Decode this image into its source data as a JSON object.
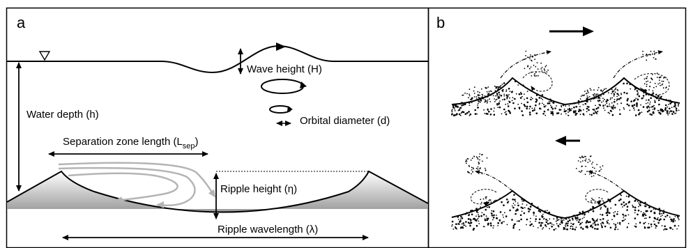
{
  "panels": {
    "a": {
      "letter": "a",
      "labels": {
        "wave_height": "Wave height (H)",
        "water_depth": "Water depth (h)",
        "orbital_diameter": "Orbital diameter (d)",
        "separation_zone_main": "Separation zone length (L",
        "separation_zone_sub": "sep",
        "separation_zone_close": ")",
        "ripple_height": "Ripple height (η)",
        "ripple_wavelength": "Ripple wavelength (λ)"
      }
    },
    "b": {
      "letter": "b",
      "flow_directions": [
        "right",
        "left"
      ]
    }
  },
  "colors": {
    "stroke": "#000000",
    "flow_lines": "#b4b4b4",
    "sediment_shade": "#9a9a9a",
    "border": "#000000"
  }
}
